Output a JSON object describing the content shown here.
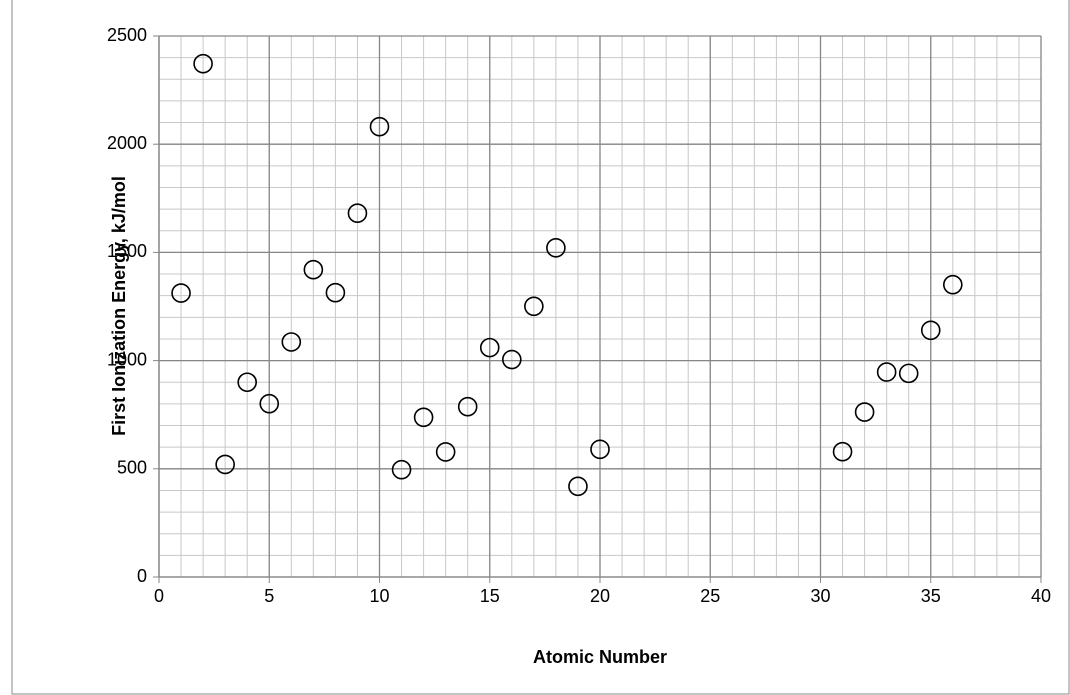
{
  "chart_data": {
    "type": "scatter",
    "x_label": "Atomic Number",
    "y_label": "First Ionization Energy, kJ/mol",
    "x": [
      1,
      2,
      3,
      4,
      5,
      6,
      7,
      8,
      9,
      10,
      11,
      12,
      13,
      14,
      15,
      16,
      17,
      18,
      19,
      20,
      31,
      32,
      33,
      34,
      35,
      36
    ],
    "values": [
      1312,
      2372,
      520,
      900,
      801,
      1086,
      1420,
      1314,
      1681,
      2081,
      496,
      738,
      578,
      787,
      1060,
      1005,
      1251,
      1521,
      419,
      590,
      579,
      762,
      947,
      941,
      1140,
      1351
    ],
    "color": "#000000",
    "xlim": [
      0,
      40
    ],
    "xticks": [
      0,
      5,
      10,
      15,
      20,
      25,
      30,
      35,
      40
    ],
    "ylim": [
      0,
      2500
    ],
    "yticks": [
      0,
      500,
      1000,
      1500,
      2000,
      2500
    ],
    "grid": true,
    "x_minor_step": 1,
    "y_minor_step": 100
  }
}
